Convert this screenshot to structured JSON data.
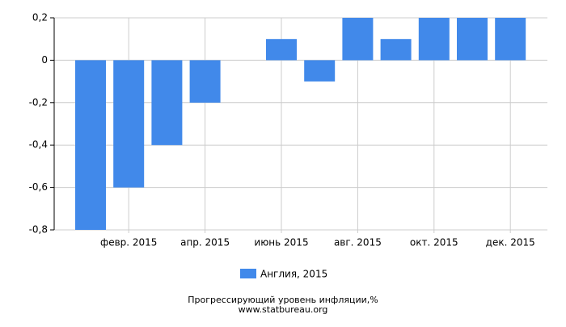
{
  "chart_data": {
    "type": "bar",
    "categories": [
      null,
      "февр. 2015",
      null,
      "апр. 2015",
      null,
      "июнь 2015",
      null,
      "авг. 2015",
      null,
      "окт. 2015",
      null,
      "дек. 2015"
    ],
    "series": [
      {
        "name": "Англия, 2015",
        "color": "#4189ea",
        "values": [
          -0.8,
          -0.6,
          -0.4,
          -0.2,
          0,
          0.1,
          -0.1,
          0.2,
          0.1,
          0.2,
          0.2,
          0.2
        ]
      }
    ],
    "ylim": [
      -0.8,
      0.2
    ],
    "yticks": [
      {
        "value": 0.2,
        "label": "0,2"
      },
      0,
      {
        "value": -0.2,
        "label": "-0,2"
      },
      {
        "value": -0.4,
        "label": "-0,4"
      },
      {
        "value": -0.6,
        "label": "-0,6"
      },
      {
        "value": -0.8,
        "label": "-0,8"
      }
    ],
    "grid": true,
    "caption": "Прогрессирующий уровень инфляции,%",
    "source": "www.statbureau.org"
  }
}
